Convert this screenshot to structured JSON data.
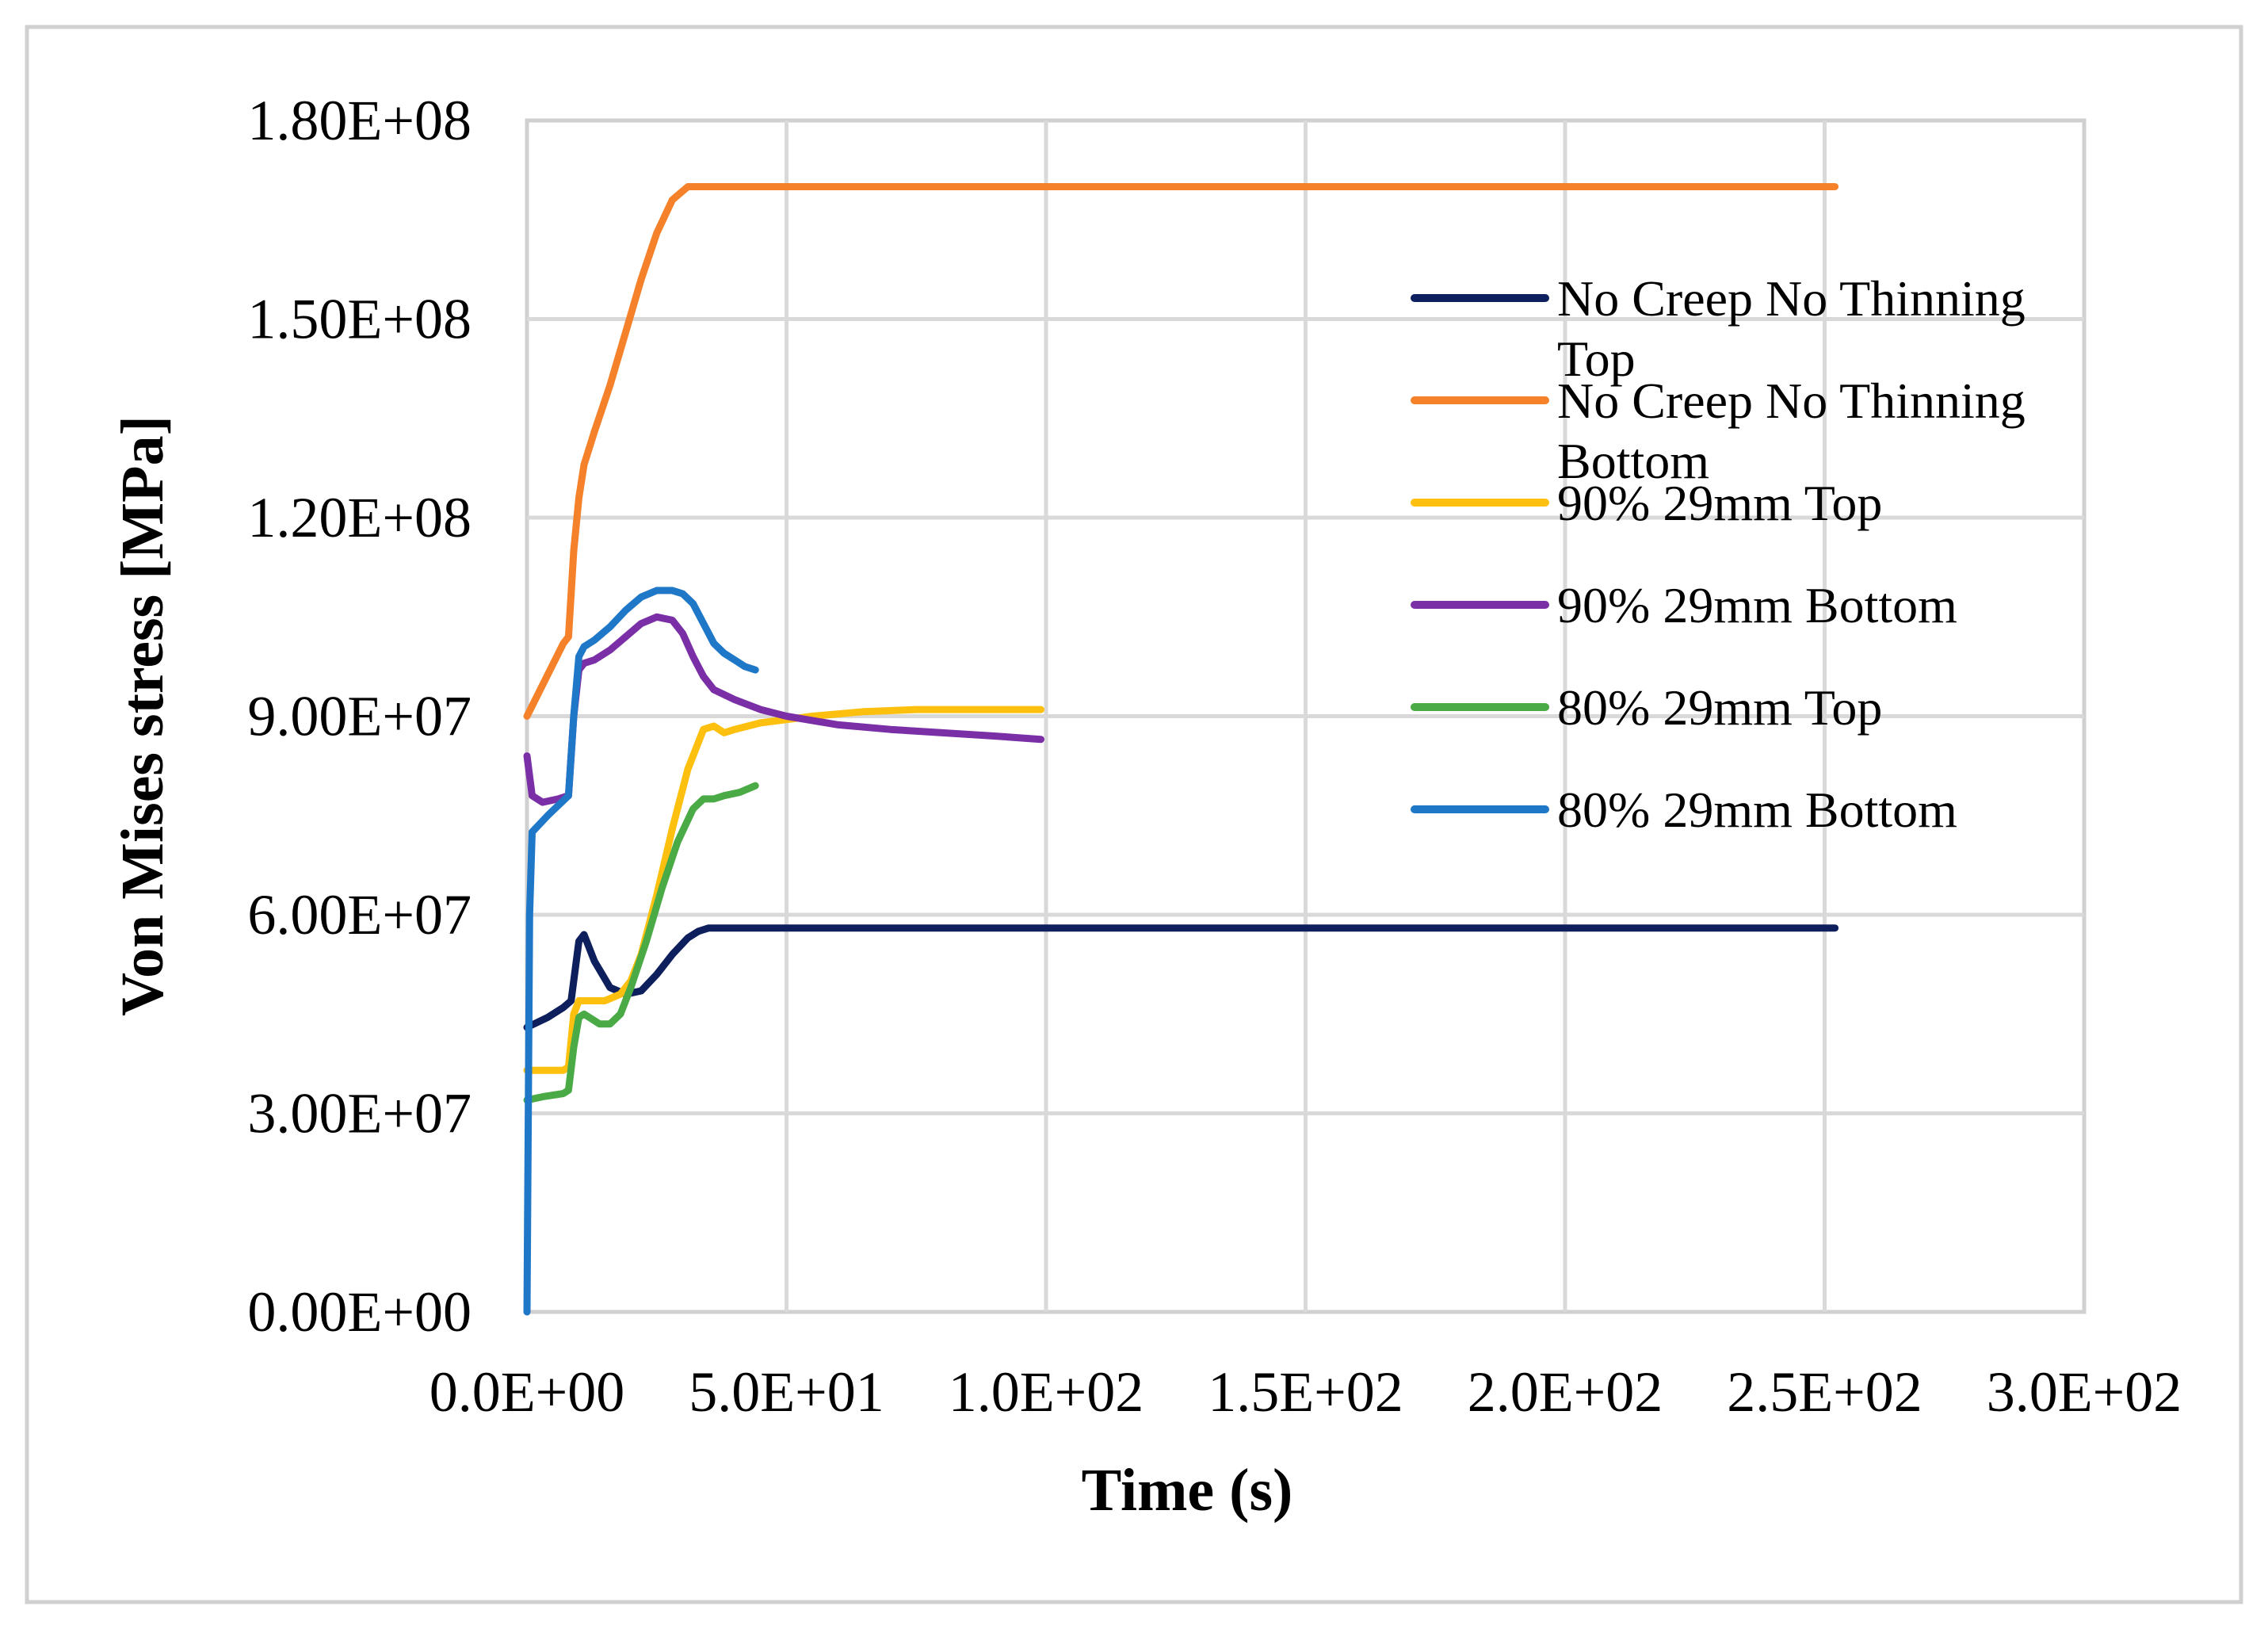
{
  "chart_data": {
    "type": "line",
    "title": "",
    "xlabel": "Time (s)",
    "ylabel": "Von Mises stress [MPa]",
    "xlim": [
      0,
      300
    ],
    "ylim": [
      0,
      180000000
    ],
    "x_ticks": [
      0,
      50,
      100,
      150,
      200,
      250,
      300
    ],
    "x_tick_labels": [
      "0.0E+00",
      "5.0E+01",
      "1.0E+02",
      "1.5E+02",
      "2.0E+02",
      "2.5E+02",
      "3.0E+02"
    ],
    "y_ticks": [
      0,
      30000000,
      60000000,
      90000000,
      120000000,
      150000000,
      180000000
    ],
    "y_tick_labels": [
      "0.00E+00",
      "3.00E+07",
      "6.00E+07",
      "9.00E+07",
      "1.20E+08",
      "1.50E+08",
      "1.80E+08"
    ],
    "grid": true,
    "legend_position": "right",
    "series": [
      {
        "name": "No Creep No Thinning Top",
        "color": "#0D1F5C",
        "x": [
          0,
          4,
          7,
          8.5,
          10,
          11,
          13,
          16,
          19,
          22,
          25,
          28,
          31,
          33,
          35,
          40,
          60,
          100,
          150,
          200,
          252
        ],
        "y": [
          43000000,
          44500000,
          46000000,
          47000000,
          56000000,
          57000000,
          53000000,
          49000000,
          48000000,
          48500000,
          51000000,
          54000000,
          56500000,
          57500000,
          58000000,
          58000000,
          58000000,
          58000000,
          58000000,
          58000000,
          58000000
        ]
      },
      {
        "name": "No Creep No Thinning Bottom",
        "color": "#F5822A",
        "x": [
          0,
          7,
          8,
          9,
          10,
          11,
          13,
          16,
          19,
          22,
          25,
          28,
          31,
          33,
          35,
          40,
          60,
          100,
          150,
          200,
          252
        ],
        "y": [
          90000000,
          101000000,
          102000000,
          115000000,
          123000000,
          128000000,
          133000000,
          140000000,
          148000000,
          156000000,
          163000000,
          168000000,
          170000000,
          170000000,
          170000000,
          170000000,
          170000000,
          170000000,
          170000000,
          170000000,
          170000000
        ]
      },
      {
        "name": "90% 29mm Top",
        "color": "#FDC00F",
        "x": [
          0,
          3,
          7,
          8,
          9,
          10,
          12,
          15,
          18,
          20,
          22,
          25,
          28,
          31,
          34,
          36,
          38,
          40,
          45,
          55,
          65,
          75,
          85,
          99
        ],
        "y": [
          36500000,
          36500000,
          36500000,
          37000000,
          45000000,
          47000000,
          47000000,
          47000000,
          48000000,
          50000000,
          54000000,
          63000000,
          73000000,
          82000000,
          88000000,
          88500000,
          87500000,
          88000000,
          89000000,
          90000000,
          90700000,
          91000000,
          91000000,
          91000000
        ]
      },
      {
        "name": "90% 29mm Bottom",
        "color": "#7B2FA6",
        "x": [
          0,
          1,
          3,
          6,
          8,
          9,
          10,
          11,
          13,
          16,
          19,
          22,
          25,
          28,
          30,
          32,
          34,
          36,
          40,
          45,
          50,
          60,
          70,
          80,
          90,
          99
        ],
        "y": [
          84000000,
          78000000,
          77000000,
          77500000,
          78000000,
          90000000,
          97000000,
          98000000,
          98500000,
          100000000,
          102000000,
          104000000,
          105000000,
          104500000,
          102500000,
          99000000,
          96000000,
          94000000,
          92500000,
          91000000,
          90000000,
          88700000,
          88000000,
          87500000,
          87000000,
          86500000
        ]
      },
      {
        "name": "80% 29mm Top",
        "color": "#4AAB46",
        "x": [
          0,
          3,
          7,
          8,
          9,
          10,
          11,
          12,
          14,
          16,
          18,
          20,
          23,
          26,
          29,
          32,
          34,
          36,
          38,
          41,
          44
        ],
        "y": [
          32000000,
          32500000,
          33000000,
          33500000,
          40000000,
          44500000,
          45000000,
          44500000,
          43500000,
          43500000,
          45000000,
          49000000,
          56000000,
          64000000,
          71000000,
          76000000,
          77500000,
          77500000,
          78000000,
          78500000,
          79500000
        ]
      },
      {
        "name": "80% 29mm Bottom",
        "color": "#1F77C8",
        "x": [
          0,
          0.5,
          1,
          4,
          8,
          9,
          10,
          11,
          13,
          16,
          19,
          22,
          25,
          28,
          30,
          32,
          34,
          36,
          38,
          40,
          42,
          44
        ],
        "y": [
          0,
          60000000,
          72500000,
          75000000,
          78000000,
          90000000,
          99000000,
          100500000,
          101500000,
          103500000,
          106000000,
          108000000,
          109000000,
          109000000,
          108500000,
          107000000,
          104000000,
          101000000,
          99500000,
          98500000,
          97500000,
          97000000
        ]
      }
    ]
  }
}
